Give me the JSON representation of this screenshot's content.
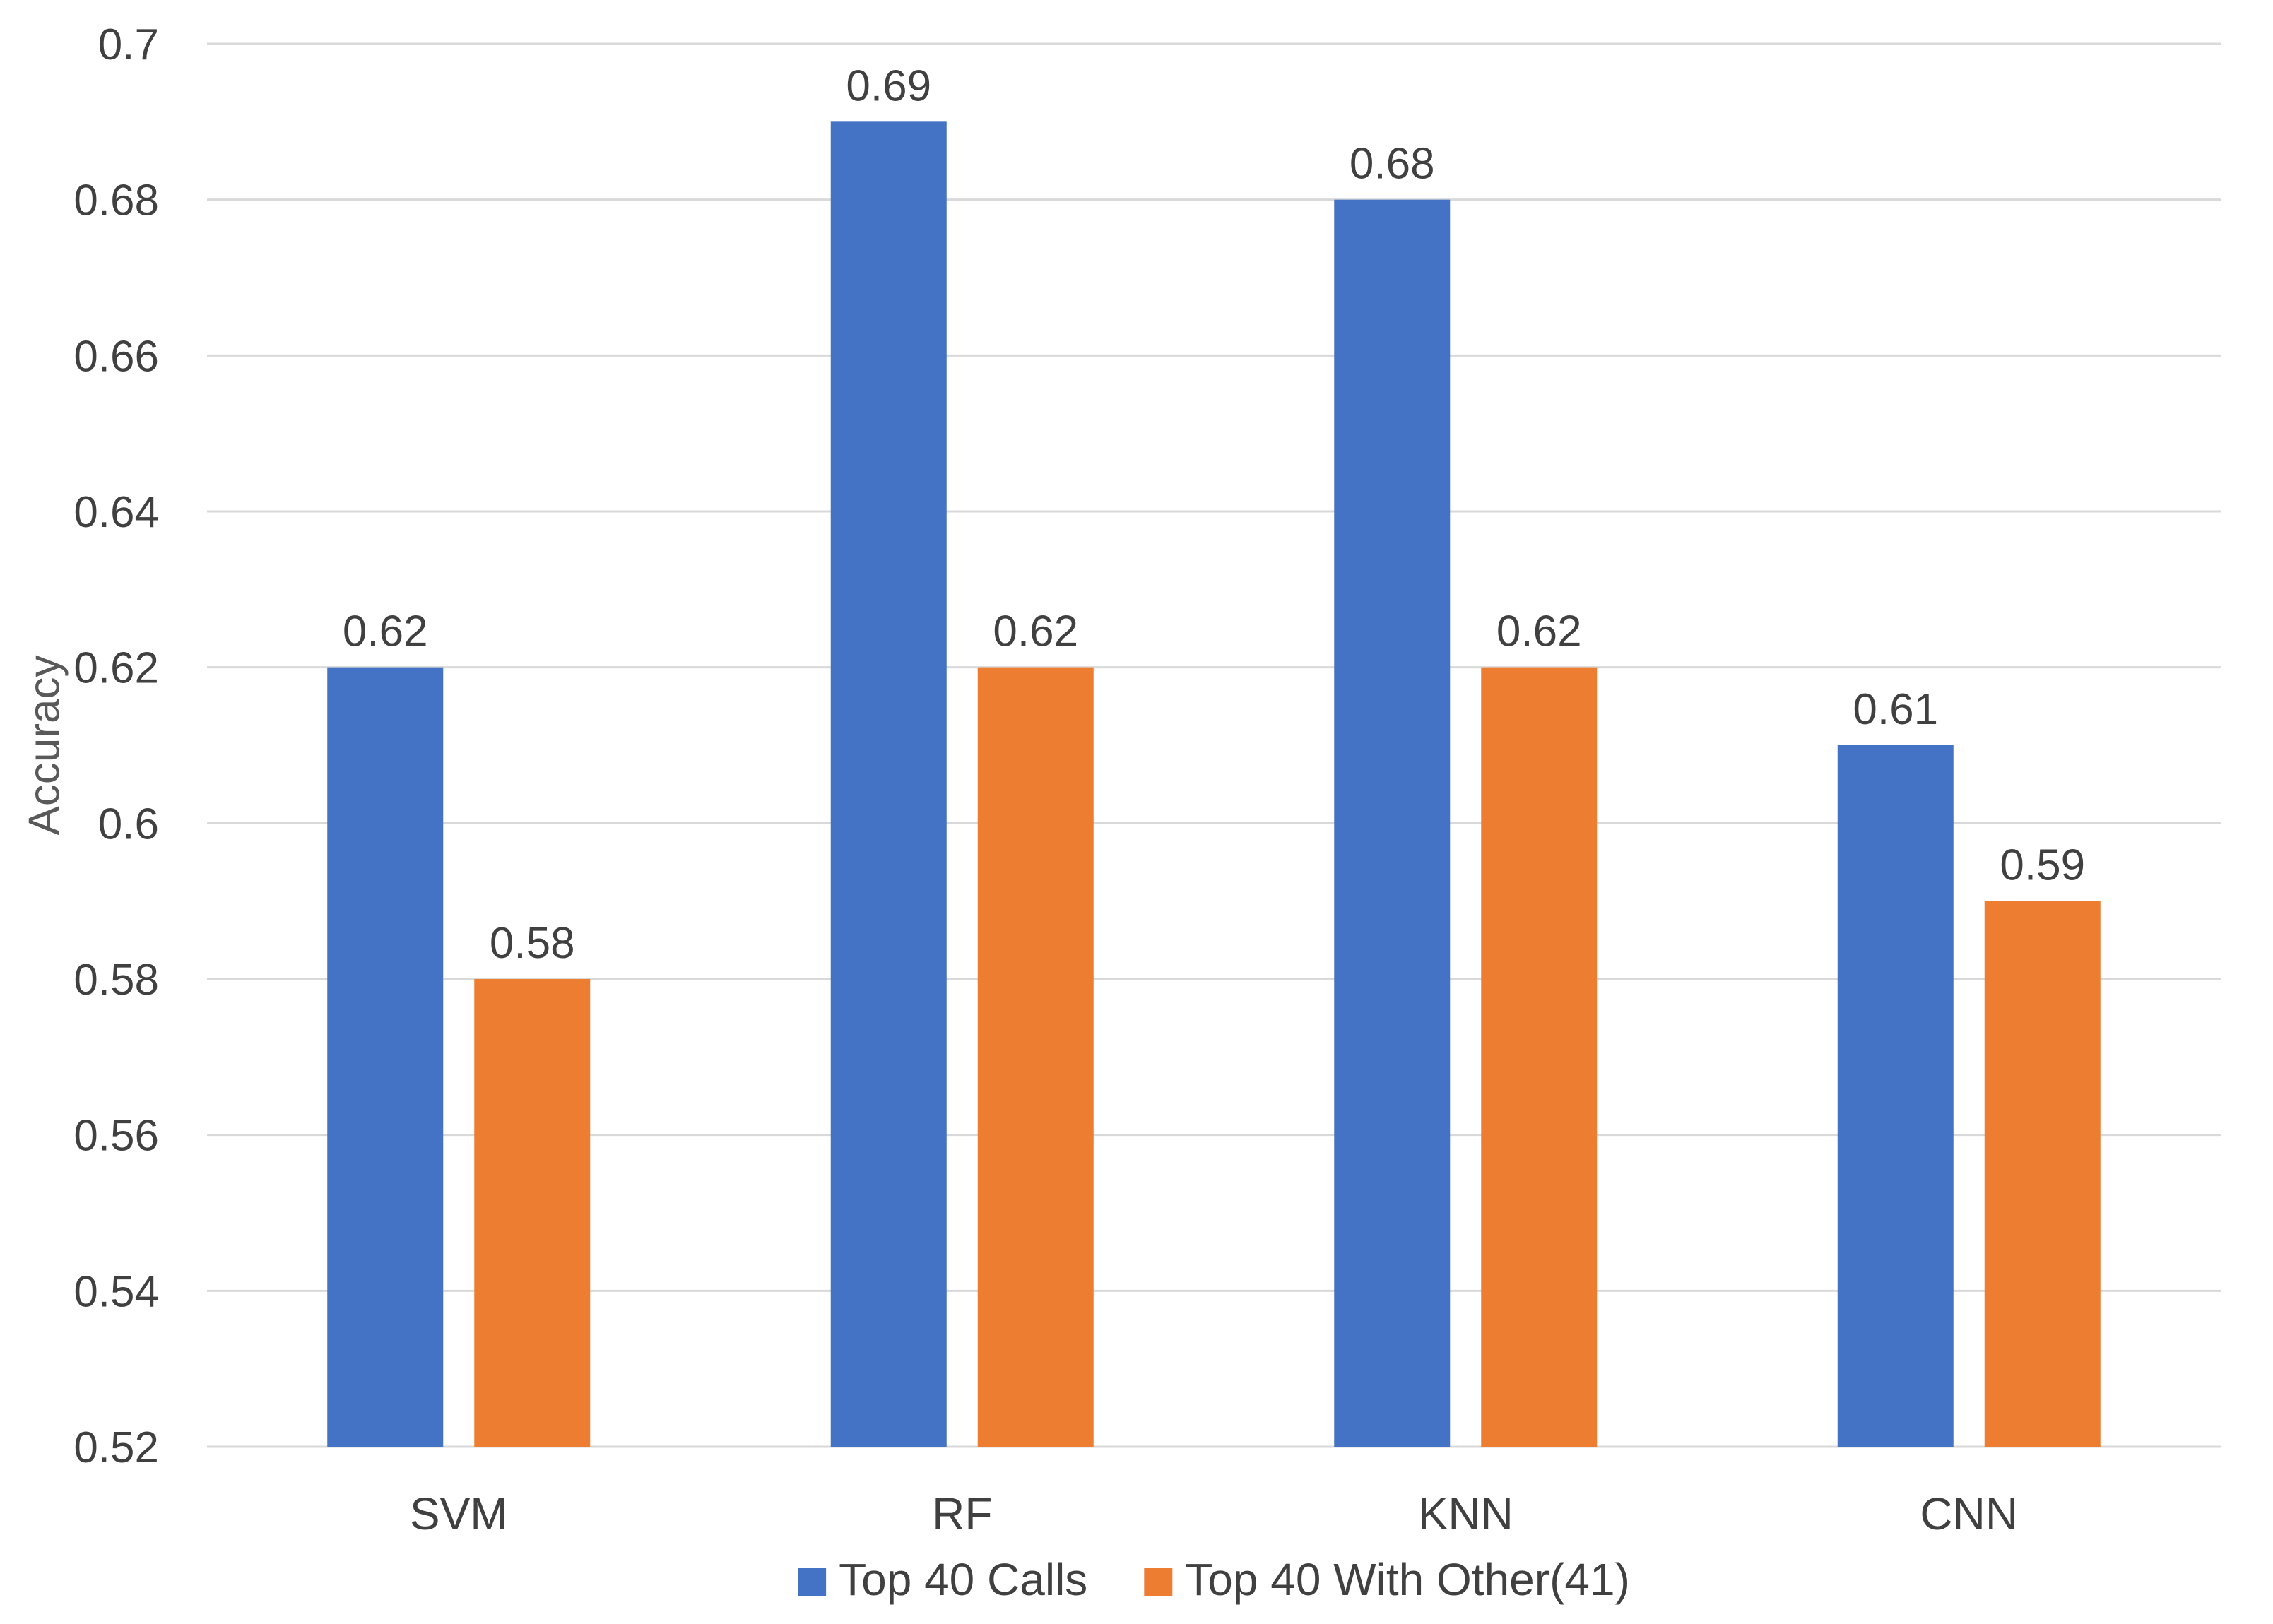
{
  "chart_data": {
    "type": "bar",
    "title": "",
    "xlabel": "",
    "ylabel": "Accuracy",
    "ylim": [
      0.52,
      0.7
    ],
    "yticks": [
      0.52,
      0.54,
      0.56,
      0.58,
      0.6,
      0.62,
      0.64,
      0.66,
      0.68,
      0.7
    ],
    "ytick_labels": [
      "0.52",
      "0.54",
      "0.56",
      "0.58",
      "0.6",
      "0.62",
      "0.64",
      "0.66",
      "0.68",
      "0.7"
    ],
    "grid": true,
    "legend_position": "bottom-center",
    "categories": [
      "SVM",
      "RF",
      "KNN",
      "CNN"
    ],
    "series": [
      {
        "name": "Top 40 Calls",
        "color": "#4472C4",
        "values": [
          0.62,
          0.69,
          0.68,
          0.61
        ],
        "labels": [
          "0.62",
          "0.69",
          "0.68",
          "0.61"
        ]
      },
      {
        "name": "Top 40 With Other(41)",
        "color": "#ED7D31",
        "values": [
          0.58,
          0.62,
          0.62,
          0.59
        ],
        "labels": [
          "0.58",
          "0.62",
          "0.62",
          "0.59"
        ]
      }
    ]
  }
}
